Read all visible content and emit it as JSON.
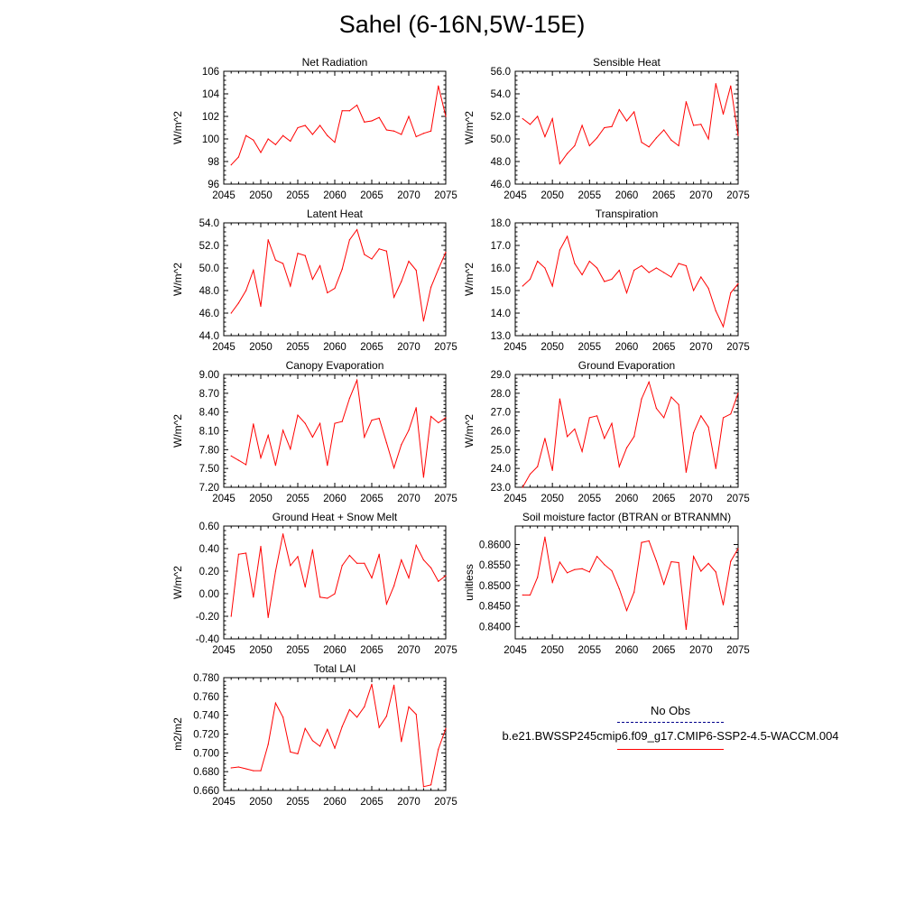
{
  "title": "Sahel (6-16N,5W-15E)",
  "colors": {
    "series": "#ff0000",
    "obs": "#00008b",
    "axis": "#000000"
  },
  "legend": {
    "obs_label": "No Obs",
    "model_label": "b.e21.BWSSP245cmip6.f09_g17.CMIP6-SSP2-4.5-WACCM.004"
  },
  "chart_data": [
    {
      "type": "line",
      "title": "Net Radiation",
      "ylabel": "W/m^2",
      "xlim": [
        2045,
        2075
      ],
      "ylim": [
        96,
        106
      ],
      "xticks": [
        "2045",
        "2050",
        "2055",
        "2060",
        "2065",
        "2070",
        "2075"
      ],
      "yticks": [
        "96",
        "98",
        "100",
        "102",
        "104",
        "106"
      ],
      "x": [
        2046,
        2047,
        2048,
        2049,
        2050,
        2051,
        2052,
        2053,
        2054,
        2055,
        2056,
        2057,
        2058,
        2059,
        2060,
        2061,
        2062,
        2063,
        2064,
        2065,
        2066,
        2067,
        2068,
        2069,
        2070,
        2071,
        2072,
        2073,
        2074,
        2075
      ],
      "values": [
        97.7,
        98.4,
        100.3,
        99.9,
        98.8,
        100.0,
        99.5,
        100.3,
        99.8,
        101.0,
        101.2,
        100.4,
        101.2,
        100.3,
        99.7,
        102.5,
        102.5,
        103.0,
        101.5,
        101.6,
        101.9,
        100.8,
        100.7,
        100.4,
        102.0,
        100.2,
        100.5,
        100.7,
        104.7,
        102.0
      ]
    },
    {
      "type": "line",
      "title": "Sensible Heat",
      "ylabel": "W/m^2",
      "xlim": [
        2045,
        2075
      ],
      "ylim": [
        46.0,
        56.0
      ],
      "xticks": [
        "2045",
        "2050",
        "2055",
        "2060",
        "2065",
        "2070",
        "2075"
      ],
      "yticks": [
        "46.0",
        "48.0",
        "50.0",
        "52.0",
        "54.0",
        "56.0"
      ],
      "x": [
        2046,
        2047,
        2048,
        2049,
        2050,
        2051,
        2052,
        2053,
        2054,
        2055,
        2056,
        2057,
        2058,
        2059,
        2060,
        2061,
        2062,
        2063,
        2064,
        2065,
        2066,
        2067,
        2068,
        2069,
        2070,
        2071,
        2072,
        2073,
        2074,
        2075
      ],
      "values": [
        51.8,
        51.3,
        52.0,
        50.2,
        51.8,
        47.8,
        48.7,
        49.4,
        51.2,
        49.4,
        50.1,
        51.0,
        51.1,
        52.6,
        51.6,
        52.4,
        49.7,
        49.3,
        50.1,
        50.8,
        49.9,
        49.4,
        53.3,
        51.2,
        51.3,
        50.0,
        54.9,
        52.2,
        54.7,
        50.3
      ]
    },
    {
      "type": "line",
      "title": "Latent Heat",
      "ylabel": "W/m^2",
      "xlim": [
        2045,
        2075
      ],
      "ylim": [
        44.0,
        54.0
      ],
      "xticks": [
        "2045",
        "2050",
        "2055",
        "2060",
        "2065",
        "2070",
        "2075"
      ],
      "yticks": [
        "44.0",
        "46.0",
        "48.0",
        "50.0",
        "52.0",
        "54.0"
      ],
      "x": [
        2046,
        2047,
        2048,
        2049,
        2050,
        2051,
        2052,
        2053,
        2054,
        2055,
        2056,
        2057,
        2058,
        2059,
        2060,
        2061,
        2062,
        2063,
        2064,
        2065,
        2066,
        2067,
        2068,
        2069,
        2070,
        2071,
        2072,
        2073,
        2074,
        2075
      ],
      "values": [
        46.0,
        46.9,
        48.0,
        49.8,
        46.6,
        52.5,
        50.7,
        50.4,
        48.4,
        51.3,
        51.1,
        49.0,
        50.2,
        47.8,
        48.2,
        49.9,
        52.5,
        53.4,
        51.2,
        50.8,
        51.7,
        51.5,
        47.4,
        48.8,
        50.6,
        49.8,
        45.3,
        48.3,
        49.9,
        51.4
      ]
    },
    {
      "type": "line",
      "title": "Transpiration",
      "ylabel": "W/m^2",
      "xlim": [
        2045,
        2075
      ],
      "ylim": [
        13.0,
        18.0
      ],
      "xticks": [
        "2045",
        "2050",
        "2055",
        "2060",
        "2065",
        "2070",
        "2075"
      ],
      "yticks": [
        "13.0",
        "14.0",
        "15.0",
        "16.0",
        "17.0",
        "18.0"
      ],
      "x": [
        2046,
        2047,
        2048,
        2049,
        2050,
        2051,
        2052,
        2053,
        2054,
        2055,
        2056,
        2057,
        2058,
        2059,
        2060,
        2061,
        2062,
        2063,
        2064,
        2065,
        2066,
        2067,
        2068,
        2069,
        2070,
        2071,
        2072,
        2073,
        2074,
        2075
      ],
      "values": [
        15.2,
        15.5,
        16.3,
        16.0,
        15.2,
        16.8,
        17.4,
        16.2,
        15.7,
        16.3,
        16.0,
        15.4,
        15.5,
        15.9,
        14.9,
        15.9,
        16.1,
        15.8,
        16.0,
        15.8,
        15.6,
        16.2,
        16.1,
        15.0,
        15.6,
        15.1,
        14.1,
        13.4,
        14.9,
        15.3
      ]
    },
    {
      "type": "line",
      "title": "Canopy Evaporation",
      "ylabel": "W/m^2",
      "xlim": [
        2045,
        2075
      ],
      "ylim": [
        7.2,
        9.0
      ],
      "xticks": [
        "2045",
        "2050",
        "2055",
        "2060",
        "2065",
        "2070",
        "2075"
      ],
      "yticks": [
        "7.20",
        "7.50",
        "7.80",
        "8.10",
        "8.40",
        "8.70",
        "9.00"
      ],
      "x": [
        2046,
        2047,
        2048,
        2049,
        2050,
        2051,
        2052,
        2053,
        2054,
        2055,
        2056,
        2057,
        2058,
        2059,
        2060,
        2061,
        2062,
        2063,
        2064,
        2065,
        2066,
        2067,
        2068,
        2069,
        2070,
        2071,
        2072,
        2073,
        2074,
        2075
      ],
      "values": [
        7.7,
        7.63,
        7.56,
        8.21,
        7.67,
        8.03,
        7.55,
        8.11,
        7.81,
        8.35,
        8.22,
        8.0,
        8.22,
        7.55,
        8.22,
        8.25,
        8.62,
        8.91,
        8.0,
        8.27,
        8.3,
        7.91,
        7.51,
        7.88,
        8.11,
        8.47,
        7.36,
        8.33,
        8.23,
        8.31
      ]
    },
    {
      "type": "line",
      "title": "Ground Evaporation",
      "ylabel": "W/m^2",
      "xlim": [
        2045,
        2075
      ],
      "ylim": [
        23.0,
        29.0
      ],
      "xticks": [
        "2045",
        "2050",
        "2055",
        "2060",
        "2065",
        "2070",
        "2075"
      ],
      "yticks": [
        "23.0",
        "24.0",
        "25.0",
        "26.0",
        "27.0",
        "28.0",
        "29.0"
      ],
      "x": [
        2046,
        2047,
        2048,
        2049,
        2050,
        2051,
        2052,
        2053,
        2054,
        2055,
        2056,
        2057,
        2058,
        2059,
        2060,
        2061,
        2062,
        2063,
        2064,
        2065,
        2066,
        2067,
        2068,
        2069,
        2070,
        2071,
        2072,
        2073,
        2074,
        2075
      ],
      "values": [
        23.0,
        23.7,
        24.1,
        25.6,
        23.9,
        27.7,
        25.7,
        26.1,
        24.9,
        26.7,
        26.8,
        25.6,
        26.4,
        24.1,
        25.1,
        25.7,
        27.7,
        28.6,
        27.2,
        26.7,
        27.8,
        27.4,
        23.8,
        25.9,
        26.8,
        26.2,
        24.0,
        26.7,
        26.9,
        28.0
      ]
    },
    {
      "type": "line",
      "title": "Ground Heat + Snow Melt",
      "ylabel": "W/m^2",
      "xlim": [
        2045,
        2075
      ],
      "ylim": [
        -0.4,
        0.6
      ],
      "xticks": [
        "2045",
        "2050",
        "2055",
        "2060",
        "2065",
        "2070",
        "2075"
      ],
      "yticks": [
        "-0.40",
        "-0.20",
        "0.00",
        "0.20",
        "0.40",
        "0.60"
      ],
      "x": [
        2046,
        2047,
        2048,
        2049,
        2050,
        2051,
        2052,
        2053,
        2054,
        2055,
        2056,
        2057,
        2058,
        2059,
        2060,
        2061,
        2062,
        2063,
        2064,
        2065,
        2066,
        2067,
        2068,
        2069,
        2070,
        2071,
        2072,
        2073,
        2074,
        2075
      ],
      "values": [
        -0.2,
        0.35,
        0.36,
        -0.03,
        0.42,
        -0.21,
        0.2,
        0.53,
        0.25,
        0.33,
        0.06,
        0.39,
        -0.03,
        -0.04,
        0.0,
        0.25,
        0.34,
        0.27,
        0.27,
        0.14,
        0.35,
        -0.09,
        0.07,
        0.3,
        0.14,
        0.43,
        0.3,
        0.23,
        0.11,
        0.16
      ]
    },
    {
      "type": "line",
      "title": "Soil moisture factor (BTRAN or BTRANMN)",
      "ylabel": "unitless",
      "xlim": [
        2045,
        2075
      ],
      "ylim": [
        0.837,
        0.8645
      ],
      "xticks": [
        "2045",
        "2050",
        "2055",
        "2060",
        "2065",
        "2070",
        "2075"
      ],
      "yticks": [
        "0.8400",
        "0.8450",
        "0.8500",
        "0.8550",
        "0.8600"
      ],
      "ytick_values": [
        0.84,
        0.845,
        0.85,
        0.855,
        0.86
      ],
      "x": [
        2046,
        2047,
        2048,
        2049,
        2050,
        2051,
        2052,
        2053,
        2054,
        2055,
        2056,
        2057,
        2058,
        2059,
        2060,
        2061,
        2062,
        2063,
        2064,
        2065,
        2066,
        2067,
        2068,
        2069,
        2070,
        2071,
        2072,
        2073,
        2074,
        2075
      ],
      "values": [
        0.8477,
        0.8477,
        0.852,
        0.8618,
        0.8508,
        0.8557,
        0.8531,
        0.8539,
        0.8541,
        0.8533,
        0.8571,
        0.8551,
        0.8536,
        0.8492,
        0.8439,
        0.8484,
        0.8605,
        0.8609,
        0.856,
        0.8503,
        0.8558,
        0.8556,
        0.8393,
        0.8571,
        0.8535,
        0.8554,
        0.8533,
        0.8453,
        0.8559,
        0.859
      ]
    },
    {
      "type": "line",
      "title": "Total LAI",
      "ylabel": "m2/m2",
      "xlim": [
        2045,
        2075
      ],
      "ylim": [
        0.66,
        0.78
      ],
      "xticks": [
        "2045",
        "2050",
        "2055",
        "2060",
        "2065",
        "2070",
        "2075"
      ],
      "yticks": [
        "0.660",
        "0.680",
        "0.700",
        "0.720",
        "0.740",
        "0.760",
        "0.780"
      ],
      "x": [
        2046,
        2047,
        2048,
        2049,
        2050,
        2051,
        2052,
        2053,
        2054,
        2055,
        2056,
        2057,
        2058,
        2059,
        2060,
        2061,
        2062,
        2063,
        2064,
        2065,
        2066,
        2067,
        2068,
        2069,
        2070,
        2071,
        2072,
        2073,
        2074,
        2075
      ],
      "values": [
        0.684,
        0.685,
        0.683,
        0.681,
        0.681,
        0.709,
        0.753,
        0.738,
        0.701,
        0.699,
        0.726,
        0.713,
        0.707,
        0.725,
        0.705,
        0.728,
        0.746,
        0.738,
        0.749,
        0.773,
        0.727,
        0.739,
        0.772,
        0.712,
        0.749,
        0.741,
        0.664,
        0.666,
        0.704,
        0.726
      ]
    }
  ]
}
